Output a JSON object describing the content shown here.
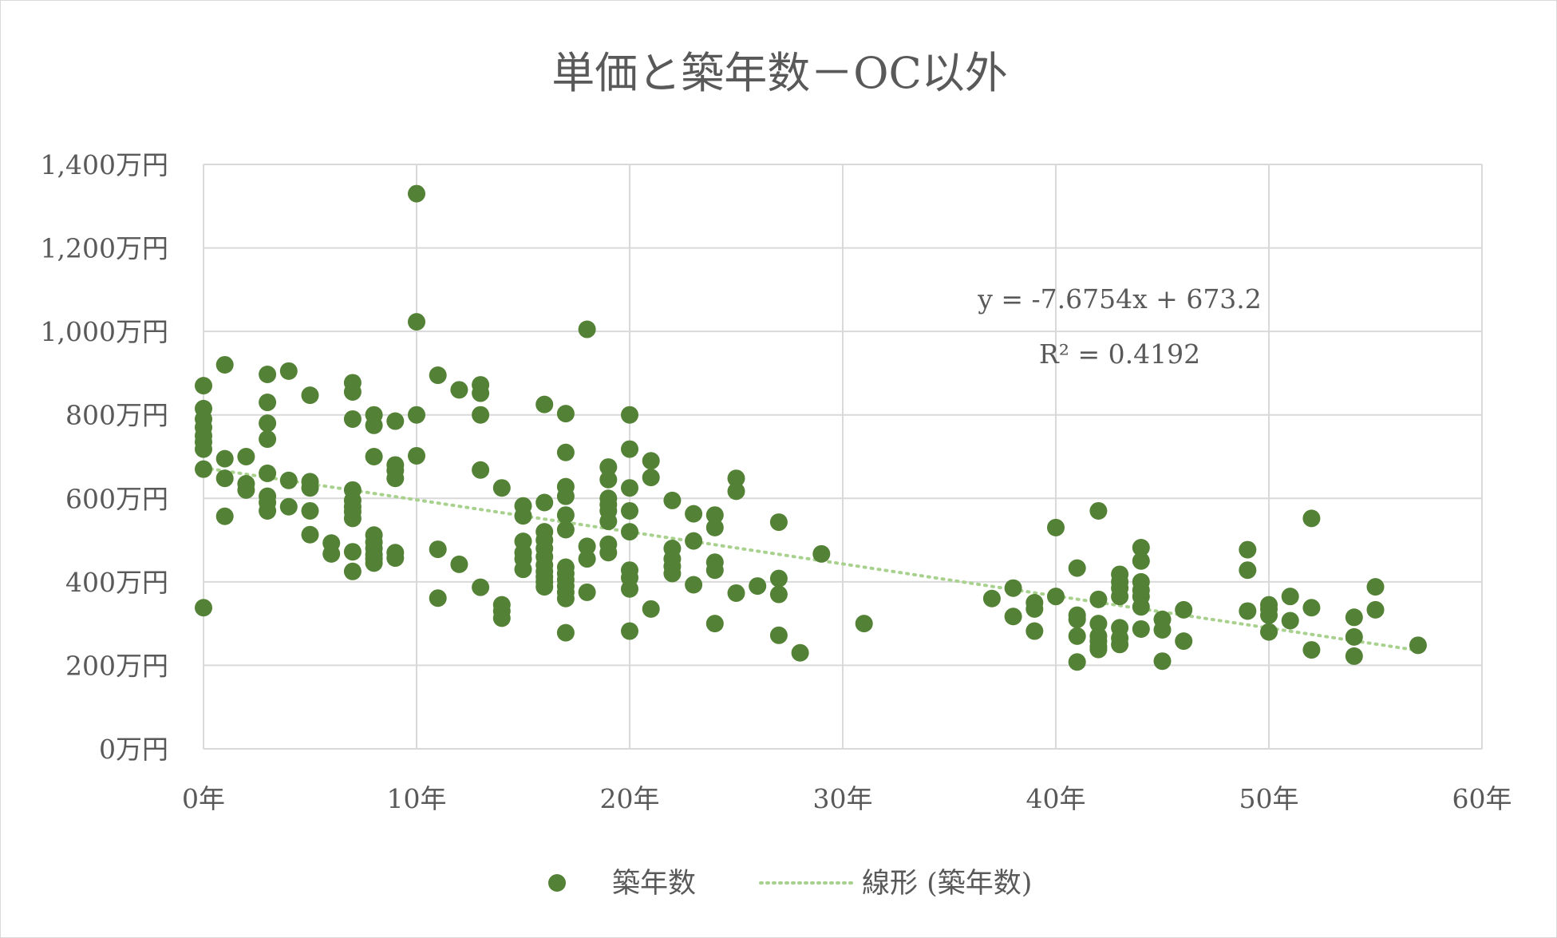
{
  "chart_data": {
    "type": "scatter",
    "title": "単価と築年数－OC以外",
    "xlabel": "",
    "ylabel": "",
    "xlim": [
      0,
      60
    ],
    "ylim": [
      0,
      1400
    ],
    "x_ticks": [
      0,
      10,
      20,
      30,
      40,
      50,
      60
    ],
    "x_tick_labels": [
      "0年",
      "10年",
      "20年",
      "30年",
      "40年",
      "50年",
      "60年"
    ],
    "y_ticks": [
      0,
      200,
      400,
      600,
      800,
      1000,
      1200,
      1400
    ],
    "y_tick_labels": [
      "0万円",
      "200万円",
      "400万円",
      "600万円",
      "800万円",
      "1,000万円",
      "1,200万円",
      "1,400万円"
    ],
    "grid": true,
    "legend_position": "bottom",
    "colors": {
      "marker": "#538135",
      "trendline": "#a9d18e",
      "grid": "#d9d9d9"
    },
    "series": [
      {
        "name": "築年数",
        "points": [
          [
            0,
            870
          ],
          [
            0,
            815
          ],
          [
            0,
            790
          ],
          [
            0,
            770
          ],
          [
            0,
            750
          ],
          [
            0,
            735
          ],
          [
            0,
            718
          ],
          [
            0,
            670
          ],
          [
            0,
            338
          ],
          [
            1,
            920
          ],
          [
            1,
            695
          ],
          [
            1,
            648
          ],
          [
            1,
            557
          ],
          [
            2,
            700
          ],
          [
            2,
            635
          ],
          [
            2,
            620
          ],
          [
            3,
            897
          ],
          [
            3,
            830
          ],
          [
            3,
            780
          ],
          [
            3,
            742
          ],
          [
            3,
            660
          ],
          [
            3,
            605
          ],
          [
            3,
            590
          ],
          [
            3,
            570
          ],
          [
            4,
            905
          ],
          [
            4,
            643
          ],
          [
            4,
            580
          ],
          [
            5,
            847
          ],
          [
            5,
            640
          ],
          [
            5,
            625
          ],
          [
            5,
            570
          ],
          [
            5,
            513
          ],
          [
            6,
            493
          ],
          [
            6,
            467
          ],
          [
            7,
            877
          ],
          [
            7,
            855
          ],
          [
            7,
            790
          ],
          [
            7,
            620
          ],
          [
            7,
            595
          ],
          [
            7,
            580
          ],
          [
            7,
            568
          ],
          [
            7,
            552
          ],
          [
            7,
            472
          ],
          [
            7,
            425
          ],
          [
            8,
            800
          ],
          [
            8,
            775
          ],
          [
            8,
            700
          ],
          [
            8,
            512
          ],
          [
            8,
            495
          ],
          [
            8,
            480
          ],
          [
            8,
            465
          ],
          [
            8,
            455
          ],
          [
            8,
            445
          ],
          [
            9,
            785
          ],
          [
            9,
            680
          ],
          [
            9,
            667
          ],
          [
            9,
            648
          ],
          [
            9,
            470
          ],
          [
            9,
            457
          ],
          [
            10,
            1330
          ],
          [
            10,
            1023
          ],
          [
            10,
            800
          ],
          [
            10,
            702
          ],
          [
            11,
            895
          ],
          [
            11,
            478
          ],
          [
            11,
            361
          ],
          [
            12,
            860
          ],
          [
            12,
            442
          ],
          [
            13,
            872
          ],
          [
            13,
            852
          ],
          [
            13,
            800
          ],
          [
            13,
            668
          ],
          [
            13,
            387
          ],
          [
            14,
            625
          ],
          [
            14,
            345
          ],
          [
            14,
            330
          ],
          [
            14,
            313
          ],
          [
            15,
            582
          ],
          [
            15,
            558
          ],
          [
            15,
            497
          ],
          [
            15,
            470
          ],
          [
            15,
            455
          ],
          [
            15,
            430
          ],
          [
            16,
            825
          ],
          [
            16,
            590
          ],
          [
            16,
            520
          ],
          [
            16,
            500
          ],
          [
            16,
            480
          ],
          [
            16,
            460
          ],
          [
            16,
            440
          ],
          [
            16,
            425
          ],
          [
            16,
            412
          ],
          [
            16,
            400
          ],
          [
            16,
            388
          ],
          [
            17,
            803
          ],
          [
            17,
            710
          ],
          [
            17,
            628
          ],
          [
            17,
            605
          ],
          [
            17,
            560
          ],
          [
            17,
            525
          ],
          [
            17,
            435
          ],
          [
            17,
            420
          ],
          [
            17,
            405
          ],
          [
            17,
            390
          ],
          [
            17,
            375
          ],
          [
            17,
            360
          ],
          [
            17,
            278
          ],
          [
            18,
            1005
          ],
          [
            18,
            485
          ],
          [
            18,
            455
          ],
          [
            18,
            375
          ],
          [
            19,
            675
          ],
          [
            19,
            645
          ],
          [
            19,
            600
          ],
          [
            19,
            585
          ],
          [
            19,
            570
          ],
          [
            19,
            545
          ],
          [
            19,
            490
          ],
          [
            19,
            470
          ],
          [
            20,
            800
          ],
          [
            20,
            718
          ],
          [
            20,
            625
          ],
          [
            20,
            570
          ],
          [
            20,
            520
          ],
          [
            20,
            428
          ],
          [
            20,
            410
          ],
          [
            20,
            383
          ],
          [
            20,
            282
          ],
          [
            21,
            690
          ],
          [
            21,
            650
          ],
          [
            21,
            335
          ],
          [
            22,
            595
          ],
          [
            22,
            480
          ],
          [
            22,
            455
          ],
          [
            22,
            437
          ],
          [
            22,
            420
          ],
          [
            23,
            563
          ],
          [
            23,
            498
          ],
          [
            23,
            393
          ],
          [
            24,
            560
          ],
          [
            24,
            530
          ],
          [
            24,
            447
          ],
          [
            24,
            428
          ],
          [
            24,
            300
          ],
          [
            25,
            648
          ],
          [
            25,
            617
          ],
          [
            25,
            373
          ],
          [
            26,
            390
          ],
          [
            27,
            543
          ],
          [
            27,
            408
          ],
          [
            27,
            370
          ],
          [
            27,
            272
          ],
          [
            28,
            230
          ],
          [
            29,
            467
          ],
          [
            31,
            300
          ],
          [
            37,
            360
          ],
          [
            38,
            385
          ],
          [
            38,
            317
          ],
          [
            39,
            350
          ],
          [
            39,
            335
          ],
          [
            39,
            282
          ],
          [
            40,
            530
          ],
          [
            40,
            365
          ],
          [
            41,
            433
          ],
          [
            41,
            320
          ],
          [
            41,
            310
          ],
          [
            41,
            270
          ],
          [
            41,
            208
          ],
          [
            42,
            570
          ],
          [
            42,
            358
          ],
          [
            42,
            300
          ],
          [
            42,
            270
          ],
          [
            42,
            258
          ],
          [
            42,
            245
          ],
          [
            42,
            238
          ],
          [
            43,
            418
          ],
          [
            43,
            400
          ],
          [
            43,
            385
          ],
          [
            43,
            365
          ],
          [
            43,
            290
          ],
          [
            43,
            265
          ],
          [
            43,
            250
          ],
          [
            44,
            482
          ],
          [
            44,
            450
          ],
          [
            44,
            400
          ],
          [
            44,
            380
          ],
          [
            44,
            365
          ],
          [
            44,
            340
          ],
          [
            44,
            287
          ],
          [
            45,
            310
          ],
          [
            45,
            285
          ],
          [
            45,
            210
          ],
          [
            46,
            333
          ],
          [
            46,
            258
          ],
          [
            49,
            477
          ],
          [
            49,
            428
          ],
          [
            49,
            330
          ],
          [
            50,
            345
          ],
          [
            50,
            335
          ],
          [
            50,
            320
          ],
          [
            50,
            280
          ],
          [
            51,
            365
          ],
          [
            51,
            307
          ],
          [
            52,
            552
          ],
          [
            52,
            338
          ],
          [
            52,
            237
          ],
          [
            54,
            315
          ],
          [
            54,
            268
          ],
          [
            54,
            222
          ],
          [
            55,
            388
          ],
          [
            55,
            333
          ],
          [
            57,
            248
          ]
        ]
      }
    ],
    "trendline": {
      "name": "線形 (築年数)",
      "slope": -7.6754,
      "intercept": 673.2,
      "x_range": [
        0,
        57
      ],
      "equation_text": "y = -7.6754x + 673.2",
      "r2_text": "R² = 0.4192"
    }
  }
}
